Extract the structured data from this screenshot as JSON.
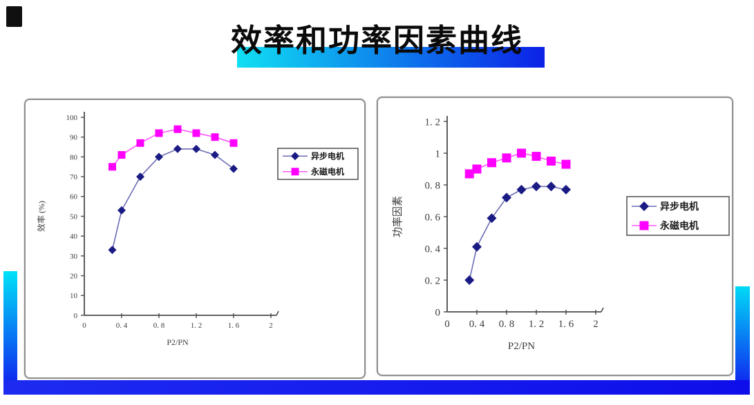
{
  "slide": {
    "title": "效率和功率因素曲线"
  },
  "decor": {
    "title_bar_gradient": [
      "#10dff2",
      "#0b21e7"
    ],
    "side_bar_gradient": [
      "#00e2f8",
      "#1114ef"
    ],
    "bottom_bar_gradient": [
      "#1d2bf0",
      "#0e0eea"
    ],
    "chart_box_border": "#8f8f8f",
    "axis_color": "#4a4a4a",
    "tick_text_color": "#3c3c3c"
  },
  "chart_data": [
    {
      "type": "line",
      "title": "",
      "ylabel": "效率 (%)",
      "xlabel": "P2/PN",
      "xlim": [
        0,
        2
      ],
      "ylim": [
        0,
        100
      ],
      "grid": false,
      "legend_position": "right",
      "x": [
        0.3,
        0.4,
        0.6,
        0.8,
        1.0,
        1.2,
        1.4,
        1.6
      ],
      "series": [
        {
          "name": "异步电机",
          "marker": "diamond",
          "marker_color": "#1a1a85",
          "line_color": "#6b6bb4",
          "values": [
            33,
            53,
            70,
            80,
            84,
            84,
            81,
            74
          ]
        },
        {
          "name": "永磁电机",
          "marker": "square",
          "marker_color": "#ff00ff",
          "line_color": "#ff55ff",
          "values": [
            75,
            81,
            87,
            92,
            94,
            92,
            90,
            87
          ]
        }
      ],
      "xticks": {
        "values": [
          0,
          0.4,
          0.8,
          1.2,
          1.6,
          2
        ],
        "labels": [
          "0",
          "0. 4",
          "0. 8",
          "1. 2",
          "1. 6",
          "2"
        ]
      },
      "yticks": {
        "values": [
          0,
          10,
          20,
          30,
          40,
          50,
          60,
          70,
          80,
          90,
          100
        ],
        "labels": [
          "0",
          "10",
          "20",
          "30",
          "40",
          "50",
          "60",
          "70",
          "80",
          "90",
          "100"
        ]
      }
    },
    {
      "type": "line",
      "title": "",
      "ylabel": "功率因素",
      "xlabel": "P2/PN",
      "xlim": [
        0,
        2
      ],
      "ylim": [
        0,
        1.2
      ],
      "grid": false,
      "legend_position": "right",
      "x": [
        0.3,
        0.4,
        0.6,
        0.8,
        1.0,
        1.2,
        1.4,
        1.6
      ],
      "series": [
        {
          "name": "异步电机",
          "marker": "diamond",
          "marker_color": "#1a1a85",
          "line_color": "#6b6bb4",
          "values": [
            0.2,
            0.41,
            0.59,
            0.72,
            0.77,
            0.79,
            0.79,
            0.77
          ]
        },
        {
          "name": "永磁电机",
          "marker": "square",
          "marker_color": "#ff00ff",
          "line_color": "#ff55ff",
          "values": [
            0.87,
            0.9,
            0.94,
            0.97,
            1.0,
            0.98,
            0.95,
            0.93
          ]
        }
      ],
      "xticks": {
        "values": [
          0,
          0.4,
          0.8,
          1.2,
          1.6,
          2
        ],
        "labels": [
          "0",
          "0. 4",
          "0. 8",
          "1. 2",
          "1. 6",
          "2"
        ]
      },
      "yticks": {
        "values": [
          0,
          0.2,
          0.4,
          0.6,
          0.8,
          1,
          1.2
        ],
        "labels": [
          "0",
          "0. 2",
          "0. 4",
          "0. 6",
          "0. 8",
          "1",
          "1. 2"
        ]
      }
    }
  ]
}
